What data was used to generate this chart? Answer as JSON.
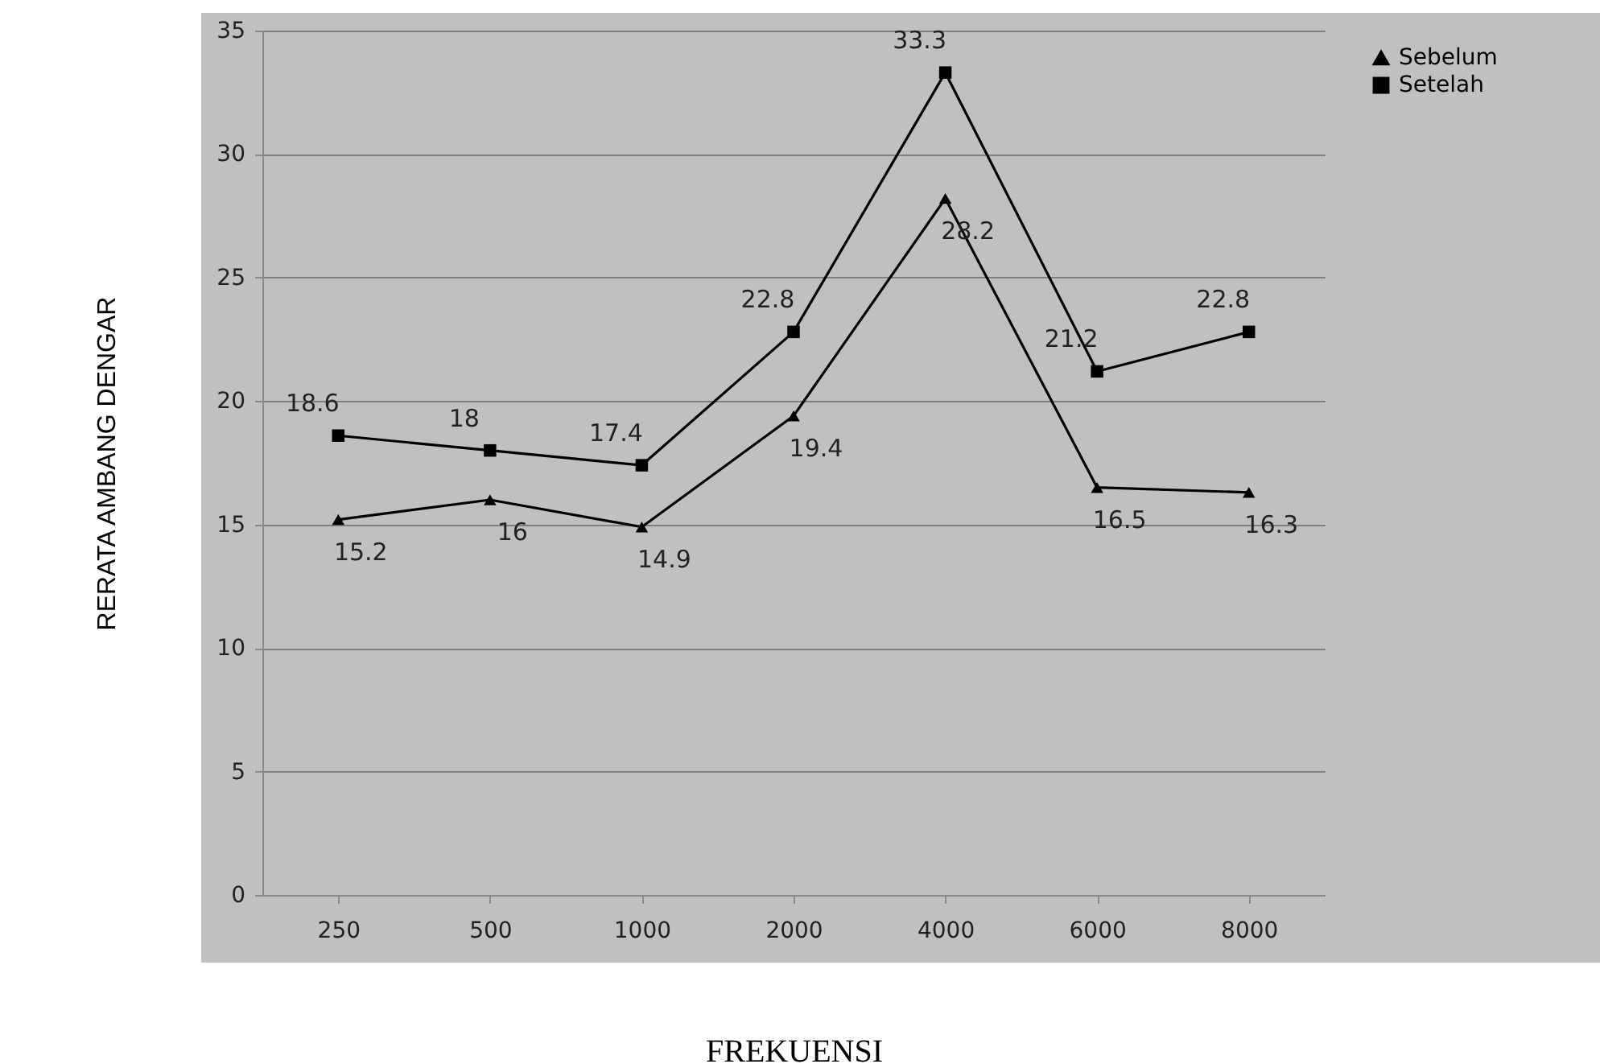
{
  "chart_data": {
    "type": "line",
    "xlabel": "FREKUENSI",
    "ylabel": "RERATA AMBANG DENGAR",
    "categories": [
      "250",
      "500",
      "1000",
      "2000",
      "4000",
      "6000",
      "8000"
    ],
    "series": [
      {
        "name": "Sebelum",
        "color": "#000000",
        "marker": "triangle",
        "values": [
          15.2,
          16,
          14.9,
          19.4,
          28.2,
          16.5,
          16.3
        ]
      },
      {
        "name": "Setelah",
        "color": "#000000",
        "marker": "square",
        "values": [
          18.6,
          18,
          17.4,
          22.8,
          33.3,
          21.2,
          22.8
        ]
      }
    ],
    "ylim": [
      0,
      35
    ],
    "yticks": [
      0,
      5,
      10,
      15,
      20,
      25,
      30,
      35
    ],
    "grid": "y",
    "legend": "right",
    "data_labels": true,
    "line_style": "solid"
  }
}
